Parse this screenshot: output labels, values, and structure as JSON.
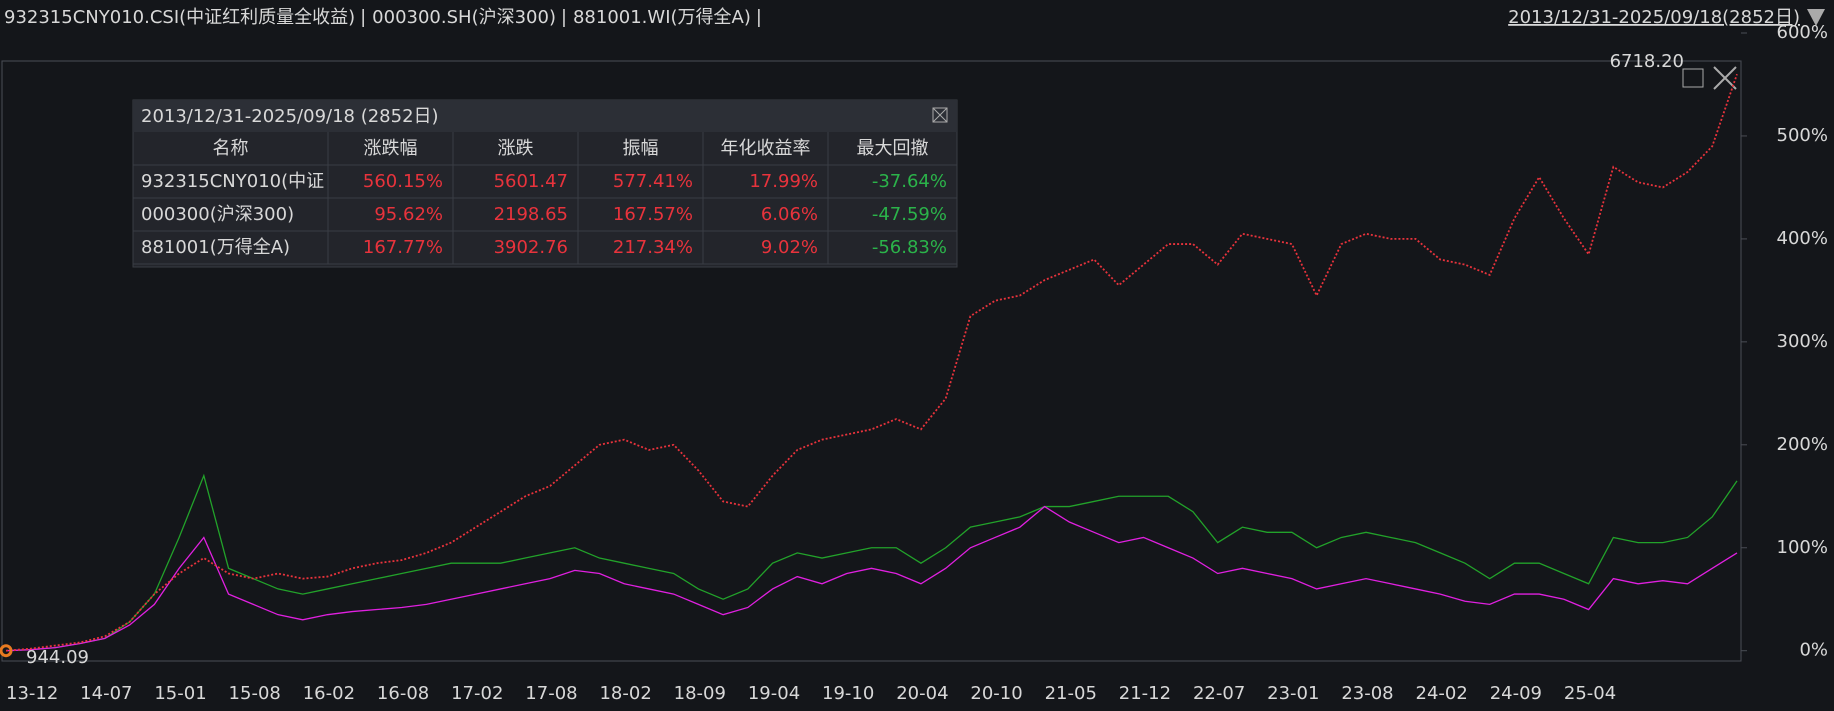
{
  "header": {
    "range": "2013/12/31-2025/09/18(2852日)"
  },
  "chart_data": {
    "type": "line",
    "categories": [
      "13-12",
      null,
      null,
      "14-07",
      null,
      null,
      "15-01",
      null,
      null,
      "15-08",
      null,
      null,
      "16-02",
      null,
      null,
      "16-08",
      null,
      null,
      "17-02",
      null,
      null,
      "17-08",
      null,
      null,
      "18-02",
      null,
      null,
      "18-09",
      null,
      null,
      "19-04",
      null,
      null,
      "19-10",
      null,
      null,
      "20-04",
      null,
      null,
      "20-10",
      null,
      null,
      "21-05",
      null,
      null,
      "21-12",
      null,
      null,
      "22-07",
      null,
      null,
      "23-01",
      null,
      null,
      "23-08",
      null,
      null,
      "24-02",
      null,
      null,
      "24-09",
      null,
      null,
      "25-04",
      null,
      null,
      null,
      null,
      null,
      null,
      null
    ],
    "series": [
      {
        "name": "932315CNY010.CSI(中证红利质量全收益)",
        "color": "#e8333c",
        "line_style": "dotted",
        "values": [
          0,
          2,
          5,
          8,
          14,
          28,
          55,
          75,
          90,
          75,
          70,
          75,
          70,
          72,
          80,
          85,
          88,
          95,
          105,
          120,
          135,
          150,
          160,
          180,
          200,
          205,
          195,
          200,
          175,
          145,
          140,
          170,
          195,
          205,
          210,
          215,
          225,
          215,
          245,
          325,
          340,
          345,
          360,
          370,
          380,
          355,
          375,
          395,
          395,
          375,
          405,
          400,
          395,
          345,
          395,
          405,
          400,
          400,
          380,
          375,
          365,
          420,
          460,
          420,
          385,
          470,
          455,
          450,
          465,
          490,
          560
        ]
      },
      {
        "name": "000300.SH(沪深300)",
        "color": "#e020e0",
        "values": [
          0,
          1,
          3,
          7,
          12,
          25,
          45,
          80,
          110,
          55,
          45,
          35,
          30,
          35,
          38,
          40,
          42,
          45,
          50,
          55,
          60,
          65,
          70,
          78,
          75,
          65,
          60,
          55,
          45,
          35,
          42,
          60,
          72,
          65,
          75,
          80,
          75,
          65,
          80,
          100,
          110,
          120,
          140,
          125,
          115,
          105,
          110,
          100,
          90,
          75,
          80,
          75,
          70,
          60,
          65,
          70,
          65,
          60,
          55,
          48,
          45,
          55,
          55,
          50,
          40,
          70,
          65,
          68,
          65,
          80,
          95
        ]
      },
      {
        "name": "881001.WI(万得全A)",
        "color": "#22a22a",
        "values": [
          0,
          1,
          3,
          7,
          12,
          28,
          55,
          110,
          170,
          80,
          70,
          60,
          55,
          60,
          65,
          70,
          75,
          80,
          85,
          85,
          85,
          90,
          95,
          100,
          90,
          85,
          80,
          75,
          60,
          50,
          60,
          85,
          95,
          90,
          95,
          100,
          100,
          85,
          100,
          120,
          125,
          130,
          140,
          140,
          145,
          150,
          150,
          150,
          135,
          105,
          120,
          115,
          115,
          100,
          110,
          115,
          110,
          105,
          95,
          85,
          70,
          85,
          85,
          75,
          65,
          110,
          105,
          105,
          110,
          130,
          165
        ]
      }
    ],
    "ylim": [
      -10,
      600
    ],
    "yticks": [
      {
        "value": 0,
        "label": "0%"
      },
      {
        "value": 100,
        "label": "100%"
      },
      {
        "value": 200,
        "label": "200%"
      },
      {
        "value": 300,
        "label": "300%"
      },
      {
        "value": 400,
        "label": "400%"
      },
      {
        "value": 500,
        "label": "500%"
      },
      {
        "value": 600,
        "label": "600%"
      }
    ],
    "end_label": "6718.20",
    "start_label": "944.09"
  },
  "stats_table": {
    "title": "2013/12/31-2025/09/18 (2852日)",
    "columns": [
      "名称",
      "涨跌幅",
      "涨跌",
      "振幅",
      "年化收益率",
      "最大回撤"
    ],
    "rows": [
      [
        "932315CNY010(中证",
        "560.15%",
        "5601.47",
        "577.41%",
        "17.99%",
        "-37.64%"
      ],
      [
        "000300(沪深300)",
        "95.62%",
        "2198.65",
        "167.57%",
        "6.06%",
        "-47.59%"
      ],
      [
        "881001(万得全A)",
        "167.77%",
        "3902.76",
        "217.34%",
        "9.02%",
        "-56.83%"
      ]
    ]
  }
}
